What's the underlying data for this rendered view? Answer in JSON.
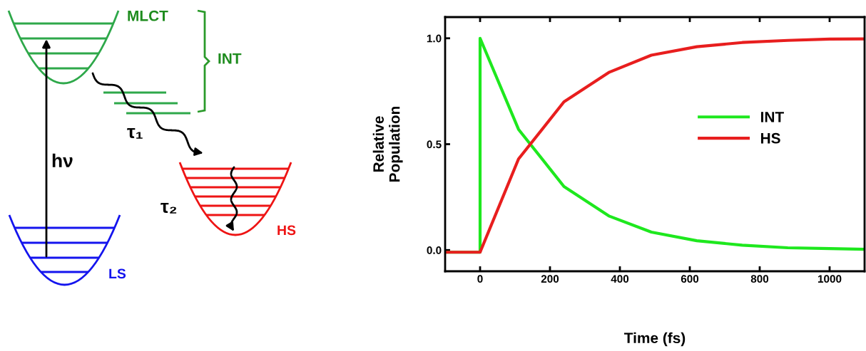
{
  "chart_data": [
    {
      "type": "other",
      "annotations": [
        "MLCT",
        "INT",
        "τ₁",
        "hν",
        "τ₂",
        "HS",
        "LS"
      ]
    },
    {
      "type": "line",
      "xlabel": "Time (fs)",
      "ylabel": "Relative\nPopulation",
      "xlim": [
        -100,
        1100
      ],
      "ylim": [
        -0.1,
        1.1
      ],
      "xticks": [
        0,
        200,
        400,
        600,
        800,
        1000
      ],
      "yticks": [
        {
          "value": 0,
          "label": "0.0"
        },
        {
          "value": 0.5,
          "label": "0.5"
        },
        {
          "value": 1,
          "label": "1.0"
        }
      ],
      "legend": "right",
      "series": [
        {
          "name": "INT",
          "color": "#1ee81e",
          "x": [
            -100,
            0,
            0,
            110,
            240,
            370,
            490,
            620,
            750,
            880,
            1000,
            1100
          ],
          "values": [
            -0.01,
            -0.01,
            1.0,
            0.57,
            0.3,
            0.16,
            0.085,
            0.044,
            0.023,
            0.011,
            0.007,
            0.004
          ]
        },
        {
          "name": "HS",
          "color": "#e81e1e",
          "x": [
            -100,
            0,
            110,
            240,
            370,
            490,
            620,
            750,
            880,
            1000,
            1100
          ],
          "values": [
            -0.01,
            -0.01,
            0.43,
            0.7,
            0.84,
            0.92,
            0.96,
            0.98,
            0.99,
            0.996,
            0.997
          ]
        }
      ]
    }
  ]
}
